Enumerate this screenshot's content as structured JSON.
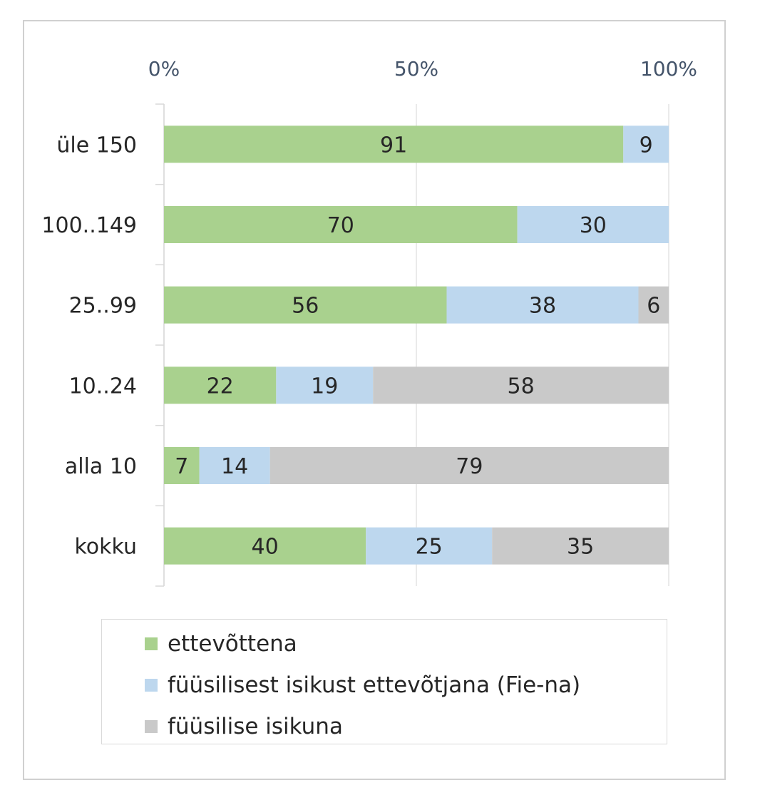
{
  "chart_data": {
    "type": "bar",
    "orientation": "horizontal",
    "stacked": "percent",
    "categories": [
      "üle 150",
      "100..149",
      "25..99",
      "10..24",
      "alla 10",
      "kokku"
    ],
    "series": [
      {
        "name": "ettevõttena",
        "color": "#a9d18e",
        "values": [
          91,
          70,
          56,
          22,
          7,
          40
        ]
      },
      {
        "name": "füüsilisest isikust ettevõtjana (Fie-na)",
        "color": "#bdd7ee",
        "values": [
          9,
          30,
          38,
          19,
          14,
          25
        ]
      },
      {
        "name": "füüsilise isikuna",
        "color": "#c9c9c9",
        "values": [
          0,
          0,
          6,
          58,
          79,
          35
        ]
      }
    ],
    "xaxis": {
      "position": "top",
      "range": [
        0,
        100
      ],
      "ticks": [
        "0%",
        "50%",
        "100%"
      ]
    },
    "gridlines": true,
    "legend_position": "bottom"
  }
}
